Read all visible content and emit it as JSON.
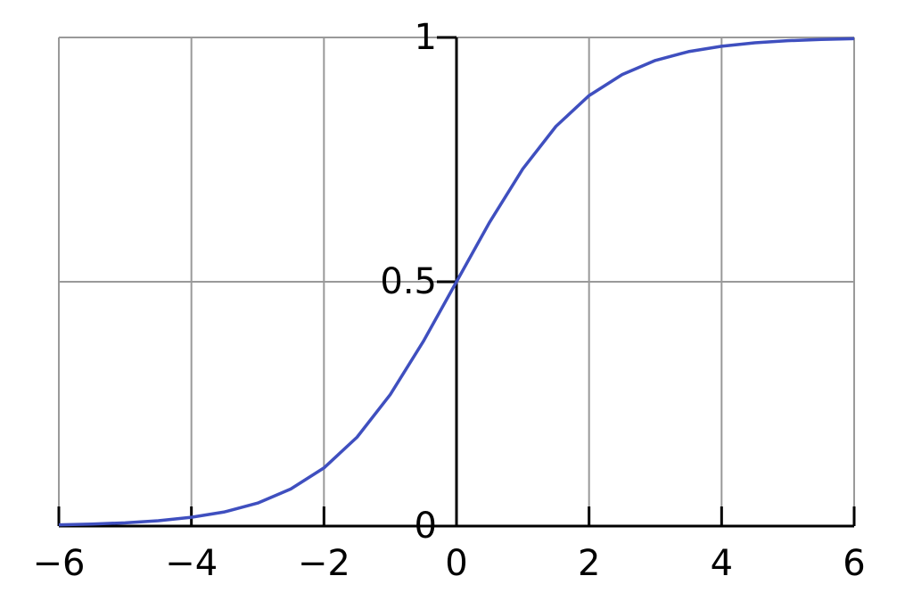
{
  "chart_data": {
    "type": "line",
    "x": [
      -6,
      -5.5,
      -5,
      -4.5,
      -4,
      -3.5,
      -3,
      -2.5,
      -2,
      -1.5,
      -1,
      -0.5,
      0,
      0.5,
      1,
      1.5,
      2,
      2.5,
      3,
      3.5,
      4,
      4.5,
      5,
      5.5,
      6
    ],
    "values": [
      0.0025,
      0.0041,
      0.0067,
      0.011,
      0.018,
      0.029,
      0.047,
      0.076,
      0.119,
      0.182,
      0.269,
      0.378,
      0.5,
      0.622,
      0.731,
      0.818,
      0.881,
      0.924,
      0.953,
      0.971,
      0.982,
      0.989,
      0.9933,
      0.9959,
      0.9975
    ],
    "color": "#3f4fbf",
    "xlim": [
      -6,
      6
    ],
    "ylim": [
      0,
      1
    ],
    "xticks": [
      {
        "value": -6,
        "label": "−6"
      },
      {
        "value": -4,
        "label": "−4"
      },
      {
        "value": -2,
        "label": "−2"
      },
      0,
      2,
      4,
      6
    ],
    "yticks": [
      0,
      0.5,
      1
    ],
    "grid": true
  }
}
